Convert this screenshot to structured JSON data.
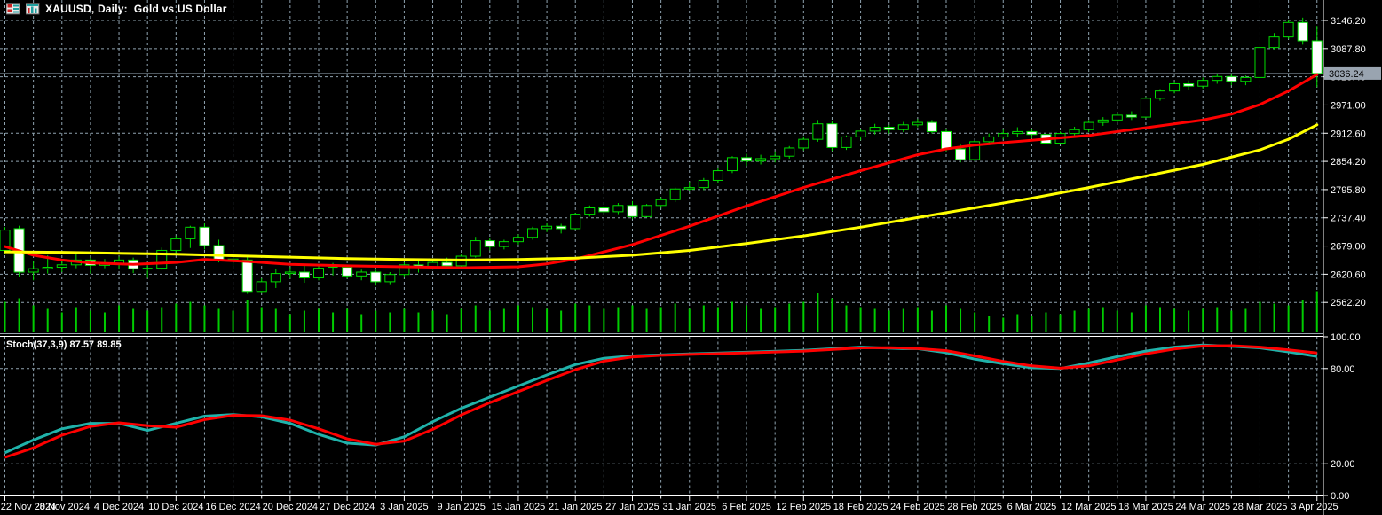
{
  "title_bar": {
    "symbol_title": "XAUUSD, Daily:  Gold vs US Dollar",
    "icons": [
      "market-watch-icon",
      "chart-window-icon"
    ]
  },
  "colors": {
    "background": "#000000",
    "grid": "#8fa3b0",
    "candle_outline": "#00dd00",
    "bull_body": "#000000",
    "bear_body": "#ffffff",
    "volume": "#00cc00",
    "ma_fast": "#ff0000",
    "ma_slow": "#ffff00",
    "price_line": "#7e8b96",
    "badge_bg": "#99a4b0",
    "badge_text": "#000000",
    "axis_text": "#ffffff",
    "panel_border": "#ffffff",
    "stoch_main": "#20b2aa",
    "stoch_signal": "#ff0000"
  },
  "chart_data": {
    "type": "candlestick",
    "symbol": "XAUUSD",
    "timeframe": "Daily",
    "description": "Gold vs US Dollar",
    "price_axis": {
      "current_price": "3036.24",
      "current_price_value": 3036.24,
      "min": 2562.2,
      "max": 3146.2,
      "tick_step": 58.4,
      "ticks": [
        {
          "label": "3146.20",
          "value": 3146.2
        },
        {
          "label": "3087.80",
          "value": 3087.8
        },
        {
          "label": "3029.40",
          "value": 3029.4
        },
        {
          "label": "2971.00",
          "value": 2971.0
        },
        {
          "label": "2912.60",
          "value": 2912.6
        },
        {
          "label": "2854.20",
          "value": 2854.2
        },
        {
          "label": "2795.80",
          "value": 2795.8
        },
        {
          "label": "2737.40",
          "value": 2737.4
        },
        {
          "label": "2679.00",
          "value": 2679.0
        },
        {
          "label": "2620.60",
          "value": 2620.6
        },
        {
          "label": "2562.20",
          "value": 2562.2
        }
      ]
    },
    "date_labels": [
      "22 Nov 2024",
      "28 Nov 2024",
      "4 Dec 2024",
      "10 Dec 2024",
      "16 Dec 2024",
      "20 Dec 2024",
      "27 Dec 2024",
      "3 Jan 2025",
      "9 Jan 2025",
      "15 Jan 2025",
      "21 Jan 2025",
      "27 Jan 2025",
      "31 Jan 2025",
      "6 Feb 2025",
      "12 Feb 2025",
      "18 Feb 2025",
      "24 Feb 2025",
      "28 Feb 2025",
      "6 Mar 2025",
      "12 Mar 2025",
      "18 Mar 2025",
      "24 Mar 2025",
      "28 Mar 2025",
      "3 Apr 2025"
    ],
    "candles": [
      [
        2670,
        2718,
        2663,
        2712
      ],
      [
        2715,
        2721,
        2615,
        2625
      ],
      [
        2625,
        2648,
        2608,
        2632
      ],
      [
        2632,
        2660,
        2622,
        2635
      ],
      [
        2635,
        2652,
        2625,
        2640
      ],
      [
        2640,
        2666,
        2633,
        2650
      ],
      [
        2650,
        2655,
        2622,
        2639
      ],
      [
        2639,
        2652,
        2633,
        2643
      ],
      [
        2643,
        2657,
        2632,
        2650
      ],
      [
        2650,
        2655,
        2623,
        2632
      ],
      [
        2632,
        2645,
        2613,
        2633
      ],
      [
        2633,
        2676,
        2630,
        2670
      ],
      [
        2670,
        2700,
        2660,
        2694
      ],
      [
        2694,
        2721,
        2675,
        2718
      ],
      [
        2718,
        2726,
        2672,
        2680
      ],
      [
        2680,
        2692,
        2645,
        2648
      ],
      [
        2648,
        2664,
        2638,
        2652
      ],
      [
        2650,
        2656,
        2580,
        2585
      ],
      [
        2585,
        2612,
        2582,
        2605
      ],
      [
        2605,
        2632,
        2592,
        2622
      ],
      [
        2622,
        2635,
        2612,
        2625
      ],
      [
        2625,
        2640,
        2603,
        2613
      ],
      [
        2613,
        2638,
        2608,
        2633
      ],
      [
        2633,
        2644,
        2618,
        2635
      ],
      [
        2635,
        2640,
        2612,
        2617
      ],
      [
        2617,
        2630,
        2608,
        2625
      ],
      [
        2625,
        2630,
        2597,
        2605
      ],
      [
        2605,
        2625,
        2600,
        2620
      ],
      [
        2620,
        2645,
        2615,
        2640
      ],
      [
        2640,
        2648,
        2624,
        2635
      ],
      [
        2635,
        2650,
        2630,
        2645
      ],
      [
        2645,
        2655,
        2632,
        2638
      ],
      [
        2638,
        2662,
        2635,
        2658
      ],
      [
        2658,
        2698,
        2655,
        2690
      ],
      [
        2690,
        2696,
        2670,
        2678
      ],
      [
        2678,
        2692,
        2672,
        2688
      ],
      [
        2688,
        2703,
        2682,
        2697
      ],
      [
        2697,
        2719,
        2692,
        2715
      ],
      [
        2715,
        2726,
        2708,
        2720
      ],
      [
        2720,
        2725,
        2705,
        2715
      ],
      [
        2715,
        2748,
        2712,
        2745
      ],
      [
        2745,
        2763,
        2740,
        2758
      ],
      [
        2758,
        2762,
        2742,
        2750
      ],
      [
        2750,
        2768,
        2745,
        2763
      ],
      [
        2763,
        2772,
        2735,
        2740
      ],
      [
        2740,
        2766,
        2738,
        2763
      ],
      [
        2763,
        2780,
        2758,
        2775
      ],
      [
        2775,
        2800,
        2770,
        2797
      ],
      [
        2797,
        2812,
        2792,
        2800
      ],
      [
        2800,
        2820,
        2795,
        2815
      ],
      [
        2815,
        2840,
        2810,
        2835
      ],
      [
        2835,
        2865,
        2830,
        2862
      ],
      [
        2862,
        2870,
        2845,
        2855
      ],
      [
        2855,
        2868,
        2848,
        2860
      ],
      [
        2860,
        2875,
        2852,
        2865
      ],
      [
        2865,
        2886,
        2860,
        2882
      ],
      [
        2882,
        2906,
        2877,
        2900
      ],
      [
        2900,
        2940,
        2895,
        2932
      ],
      [
        2932,
        2938,
        2876,
        2883
      ],
      [
        2883,
        2908,
        2878,
        2905
      ],
      [
        2905,
        2922,
        2898,
        2917
      ],
      [
        2917,
        2932,
        2910,
        2925
      ],
      [
        2925,
        2930,
        2912,
        2920
      ],
      [
        2920,
        2936,
        2915,
        2930
      ],
      [
        2930,
        2942,
        2925,
        2935
      ],
      [
        2935,
        2940,
        2912,
        2916
      ],
      [
        2916,
        2922,
        2875,
        2880
      ],
      [
        2880,
        2890,
        2852,
        2858
      ],
      [
        2858,
        2898,
        2855,
        2895
      ],
      [
        2895,
        2912,
        2888,
        2905
      ],
      [
        2905,
        2920,
        2900,
        2912
      ],
      [
        2912,
        2925,
        2905,
        2916
      ],
      [
        2916,
        2922,
        2902,
        2910
      ],
      [
        2910,
        2915,
        2888,
        2892
      ],
      [
        2892,
        2916,
        2890,
        2912
      ],
      [
        2912,
        2926,
        2908,
        2920
      ],
      [
        2920,
        2940,
        2915,
        2935
      ],
      [
        2935,
        2946,
        2928,
        2940
      ],
      [
        2940,
        2956,
        2935,
        2950
      ],
      [
        2950,
        2958,
        2940,
        2946
      ],
      [
        2946,
        2988,
        2944,
        2985
      ],
      [
        2985,
        3004,
        2980,
        3000
      ],
      [
        3000,
        3018,
        2995,
        3015
      ],
      [
        3015,
        3022,
        3002,
        3010
      ],
      [
        3010,
        3028,
        3005,
        3022
      ],
      [
        3022,
        3036,
        3015,
        3030
      ],
      [
        3030,
        3034,
        3012,
        3020
      ],
      [
        3020,
        3032,
        3012,
        3028
      ],
      [
        3028,
        3095,
        3024,
        3090
      ],
      [
        3090,
        3120,
        3086,
        3112
      ],
      [
        3112,
        3148,
        3108,
        3142
      ],
      [
        3142,
        3152,
        3096,
        3104
      ],
      [
        3104,
        3135,
        3008,
        3036.24
      ]
    ],
    "volume": [
      34,
      38,
      30,
      26,
      22,
      28,
      24,
      22,
      30,
      26,
      24,
      28,
      32,
      34,
      30,
      26,
      24,
      36,
      28,
      26,
      20,
      24,
      26,
      22,
      26,
      20,
      24,
      22,
      26,
      22,
      24,
      20,
      26,
      30,
      24,
      26,
      30,
      28,
      26,
      24,
      32,
      30,
      26,
      28,
      30,
      26,
      28,
      32,
      26,
      30,
      28,
      34,
      30,
      26,
      28,
      32,
      34,
      44,
      38,
      30,
      28,
      26,
      24,
      26,
      28,
      24,
      30,
      26,
      22,
      18,
      16,
      20,
      18,
      22,
      20,
      24,
      26,
      28,
      24,
      22,
      30,
      28,
      26,
      24,
      26,
      28,
      24,
      26,
      34,
      32,
      30,
      36,
      46
    ],
    "overlays": [
      {
        "name": "ma-fast",
        "color": "#ff0000",
        "points": [
          [
            0,
            2678
          ],
          [
            2,
            2660
          ],
          [
            4,
            2650
          ],
          [
            6,
            2644
          ],
          [
            9,
            2641
          ],
          [
            12,
            2645
          ],
          [
            14,
            2651
          ],
          [
            17,
            2647
          ],
          [
            20,
            2641
          ],
          [
            24,
            2638
          ],
          [
            28,
            2636
          ],
          [
            32,
            2634
          ],
          [
            36,
            2636
          ],
          [
            38,
            2642
          ],
          [
            40,
            2652
          ],
          [
            44,
            2682
          ],
          [
            48,
            2720
          ],
          [
            52,
            2762
          ],
          [
            56,
            2800
          ],
          [
            60,
            2835
          ],
          [
            64,
            2868
          ],
          [
            66,
            2880
          ],
          [
            68,
            2888
          ],
          [
            72,
            2898
          ],
          [
            76,
            2908
          ],
          [
            80,
            2924
          ],
          [
            84,
            2940
          ],
          [
            86,
            2952
          ],
          [
            88,
            2972
          ],
          [
            90,
            3000
          ],
          [
            92,
            3034
          ]
        ]
      },
      {
        "name": "ma-slow",
        "color": "#ffff00",
        "points": [
          [
            0,
            2667
          ],
          [
            4,
            2666
          ],
          [
            8,
            2664
          ],
          [
            12,
            2662
          ],
          [
            16,
            2659
          ],
          [
            20,
            2656
          ],
          [
            24,
            2653
          ],
          [
            28,
            2651
          ],
          [
            32,
            2650
          ],
          [
            36,
            2651
          ],
          [
            40,
            2654
          ],
          [
            44,
            2660
          ],
          [
            48,
            2670
          ],
          [
            52,
            2684
          ],
          [
            56,
            2700
          ],
          [
            60,
            2718
          ],
          [
            64,
            2738
          ],
          [
            68,
            2758
          ],
          [
            72,
            2778
          ],
          [
            76,
            2800
          ],
          [
            80,
            2824
          ],
          [
            84,
            2848
          ],
          [
            88,
            2878
          ],
          [
            90,
            2900
          ],
          [
            92,
            2930
          ]
        ]
      }
    ],
    "indicator": {
      "name": "Stochastic Oscillator",
      "label": "Stoch(37,3,9) 87.57 89.85",
      "params": "37,3,9",
      "current_main": 87.57,
      "current_signal": 89.85,
      "axis_ticks": [
        {
          "label": "100.00",
          "value": 100
        },
        {
          "label": "80.00",
          "value": 80
        },
        {
          "label": "20.00",
          "value": 20
        },
        {
          "label": "0.00",
          "value": 0
        }
      ],
      "grid_levels": [
        80,
        20
      ],
      "main_points": [
        [
          0,
          27
        ],
        [
          2,
          35
        ],
        [
          4,
          42
        ],
        [
          6,
          45.5
        ],
        [
          8,
          45.5
        ],
        [
          10,
          41
        ],
        [
          12,
          45.5
        ],
        [
          14,
          50
        ],
        [
          16,
          51
        ],
        [
          18,
          49.5
        ],
        [
          20,
          45.5
        ],
        [
          22,
          38.5
        ],
        [
          24,
          33
        ],
        [
          26,
          31.8
        ],
        [
          28,
          37
        ],
        [
          30,
          46.5
        ],
        [
          32,
          55
        ],
        [
          34,
          62
        ],
        [
          36,
          69
        ],
        [
          38,
          76
        ],
        [
          40,
          82.5
        ],
        [
          42,
          86.5
        ],
        [
          44,
          88
        ],
        [
          46,
          88.6
        ],
        [
          48,
          89.2
        ],
        [
          52,
          90.3
        ],
        [
          56,
          91.5
        ],
        [
          60,
          93.5
        ],
        [
          63,
          92.5
        ],
        [
          64,
          92.5
        ],
        [
          66,
          90
        ],
        [
          68,
          86
        ],
        [
          70,
          83
        ],
        [
          72,
          80.5
        ],
        [
          74,
          80
        ],
        [
          76,
          83.5
        ],
        [
          78,
          87.5
        ],
        [
          80,
          91
        ],
        [
          82,
          93.5
        ],
        [
          84,
          94.8
        ],
        [
          86,
          94
        ],
        [
          88,
          93
        ],
        [
          90,
          90.5
        ],
        [
          92,
          87.57
        ]
      ],
      "signal_points": [
        [
          0,
          24
        ],
        [
          2,
          30
        ],
        [
          4,
          38
        ],
        [
          6,
          43.5
        ],
        [
          8,
          45.8
        ],
        [
          10,
          44
        ],
        [
          12,
          43
        ],
        [
          14,
          47.8
        ],
        [
          16,
          50.5
        ],
        [
          18,
          50.3
        ],
        [
          20,
          47.5
        ],
        [
          22,
          42
        ],
        [
          24,
          35.7
        ],
        [
          26,
          32.3
        ],
        [
          28,
          34.3
        ],
        [
          30,
          41.7
        ],
        [
          32,
          50.8
        ],
        [
          34,
          58.5
        ],
        [
          36,
          65.5
        ],
        [
          38,
          72.5
        ],
        [
          40,
          79.3
        ],
        [
          42,
          84.7
        ],
        [
          44,
          87.3
        ],
        [
          46,
          88.3
        ],
        [
          48,
          88.9
        ],
        [
          52,
          89.9
        ],
        [
          56,
          91
        ],
        [
          60,
          93
        ],
        [
          62,
          93.2
        ],
        [
          64,
          92.6
        ],
        [
          66,
          91.3
        ],
        [
          68,
          88
        ],
        [
          70,
          84.5
        ],
        [
          72,
          81.7
        ],
        [
          74,
          80.2
        ],
        [
          76,
          81.7
        ],
        [
          78,
          85.5
        ],
        [
          80,
          89.3
        ],
        [
          82,
          92.3
        ],
        [
          84,
          94.2
        ],
        [
          86,
          94.4
        ],
        [
          88,
          93.5
        ],
        [
          90,
          91.8
        ],
        [
          92,
          89.85
        ]
      ]
    }
  }
}
